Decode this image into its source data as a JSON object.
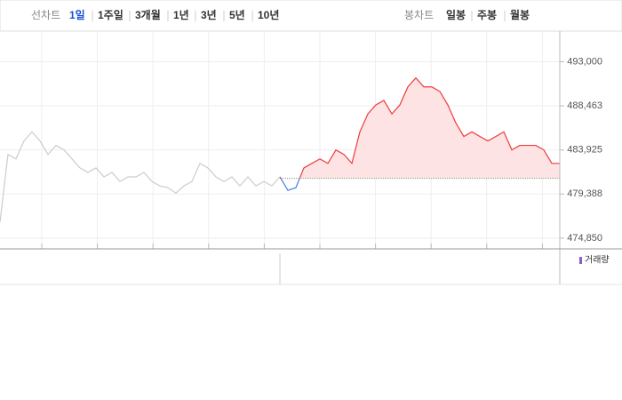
{
  "tabs": {
    "line_label": "선차트",
    "periods": [
      "1일",
      "1주일",
      "3개월",
      "1년",
      "3년",
      "5년",
      "10년"
    ],
    "candle_label": "봉차트",
    "candles": [
      "일봉",
      "주봉",
      "월봉"
    ]
  },
  "chart_data": {
    "type": "line",
    "ylim": [
      473740,
      496150
    ],
    "yticks": [
      {
        "value": 493000,
        "label": "493,000"
      },
      {
        "value": 488463,
        "label": "488,463"
      },
      {
        "value": 483925,
        "label": "483,925"
      },
      {
        "value": 479388,
        "label": "479,388"
      },
      {
        "value": 474850,
        "label": "474,850"
      }
    ],
    "grid": true,
    "reference_value": 481000,
    "up_color": "#f03a3a",
    "down_color": "#3a7ff0",
    "up_fill": "#fde3e3",
    "series": [
      {
        "color": "#cccccc",
        "values": [
          476500,
          483460,
          483000,
          484850,
          485780,
          484850,
          483460,
          484390,
          483925,
          483000,
          482070,
          481610,
          482070,
          481150,
          481610,
          480680,
          481150,
          481150,
          481610,
          480680,
          480220,
          480040,
          479480,
          480220,
          480680,
          482540,
          482070,
          481150,
          480680,
          481150,
          480220,
          481150,
          480220,
          480680,
          480220,
          481150,
          null,
          null,
          null,
          null,
          null,
          null,
          null,
          null,
          null,
          null,
          null,
          null,
          null,
          null,
          null,
          null,
          null,
          null,
          null,
          null,
          null,
          null,
          null,
          null,
          null,
          null,
          null,
          null,
          null,
          null,
          null,
          null,
          null,
          null,
          null
        ]
      },
      {
        "color": "#f03a3a",
        "values": [
          null,
          null,
          null,
          null,
          null,
          null,
          null,
          null,
          null,
          null,
          null,
          null,
          null,
          null,
          null,
          null,
          null,
          null,
          null,
          null,
          null,
          null,
          null,
          null,
          null,
          null,
          null,
          null,
          null,
          null,
          null,
          null,
          null,
          null,
          null,
          481150,
          479758,
          480040,
          482070,
          482540,
          483000,
          482540,
          483925,
          483460,
          482540,
          485780,
          487630,
          488555,
          489020,
          487630,
          488555,
          490410,
          491330,
          490410,
          490410,
          489940,
          488555,
          486700,
          485310,
          485780,
          485310,
          484850,
          485310,
          485780,
          483925,
          484390,
          484390,
          484390,
          483925,
          482540,
          482540
        ]
      }
    ],
    "volume_label": "거래량"
  }
}
